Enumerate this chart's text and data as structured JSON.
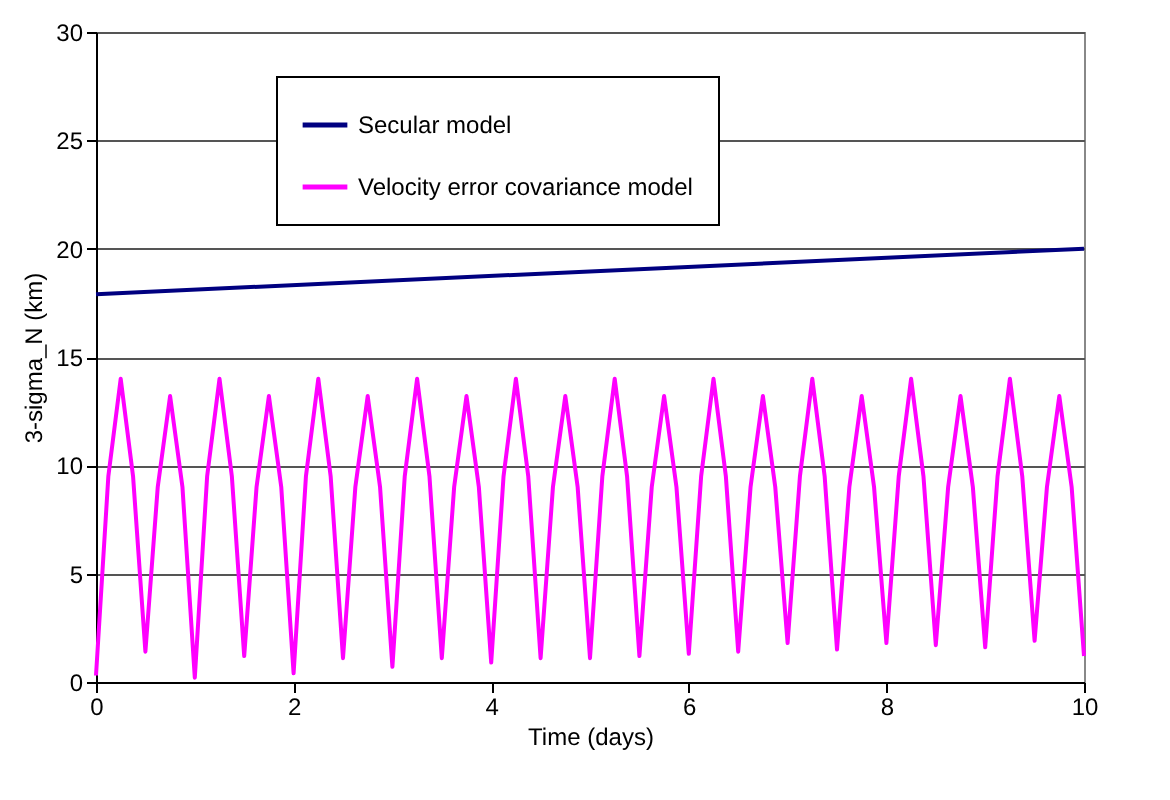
{
  "chart_data": {
    "type": "line",
    "xlabel": "Time (days)",
    "ylabel": "3-sigma_N (km)",
    "xlim": [
      0,
      10
    ],
    "xticks": [
      0,
      2,
      4,
      6,
      8,
      10
    ],
    "ylim": [
      0,
      30
    ],
    "yticks": [
      0,
      5,
      10,
      15,
      20,
      25,
      30
    ],
    "grid": "y",
    "legend": "top",
    "line_style": "solid",
    "marker": "none",
    "series": [
      {
        "name": "Secular model",
        "color": "#000080",
        "x": [
          0,
          10
        ],
        "values": [
          17.9,
          20.0
        ]
      },
      {
        "name": "Velocity error covariance model",
        "color": "#ff00ff",
        "x": [
          0,
          0.125,
          0.25,
          0.375,
          0.5,
          0.625,
          0.75,
          0.875,
          1,
          1.125,
          1.25,
          1.375,
          1.5,
          1.625,
          1.75,
          1.875,
          2,
          2.125,
          2.25,
          2.375,
          2.5,
          2.625,
          2.75,
          2.875,
          3,
          3.125,
          3.25,
          3.375,
          3.5,
          3.625,
          3.75,
          3.875,
          4,
          4.125,
          4.25,
          4.375,
          4.5,
          4.625,
          4.75,
          4.875,
          5,
          5.125,
          5.25,
          5.375,
          5.5,
          5.625,
          5.75,
          5.875,
          6,
          6.125,
          6.25,
          6.375,
          6.5,
          6.625,
          6.75,
          6.875,
          7,
          7.125,
          7.25,
          7.375,
          7.5,
          7.625,
          7.75,
          7.875,
          8,
          8.125,
          8.25,
          8.375,
          8.5,
          8.625,
          8.75,
          8.875,
          9,
          9.125,
          9.25,
          9.375,
          9.5,
          9.625,
          9.75,
          9.875,
          10
        ],
        "values": [
          0.3,
          9.5,
          14.0,
          9.5,
          1.4,
          9.0,
          13.2,
          9.0,
          0.2,
          9.5,
          14.0,
          9.5,
          1.2,
          9.0,
          13.2,
          9.0,
          0.4,
          9.5,
          14.0,
          9.5,
          1.1,
          9.0,
          13.2,
          9.0,
          0.7,
          9.5,
          14.0,
          9.5,
          1.1,
          9.0,
          13.2,
          9.0,
          0.9,
          9.5,
          14.0,
          9.5,
          1.1,
          9.0,
          13.2,
          9.0,
          1.1,
          9.5,
          14.0,
          9.5,
          1.2,
          9.0,
          13.2,
          9.0,
          1.3,
          9.5,
          14.0,
          9.5,
          1.4,
          9.0,
          13.2,
          9.0,
          1.8,
          9.5,
          14.0,
          9.5,
          1.5,
          9.0,
          13.2,
          9.0,
          1.8,
          9.5,
          14.0,
          9.5,
          1.7,
          9.0,
          13.2,
          9.0,
          1.6,
          9.5,
          14.0,
          9.5,
          1.9,
          9.0,
          13.2,
          9.0,
          1.2
        ]
      }
    ]
  }
}
